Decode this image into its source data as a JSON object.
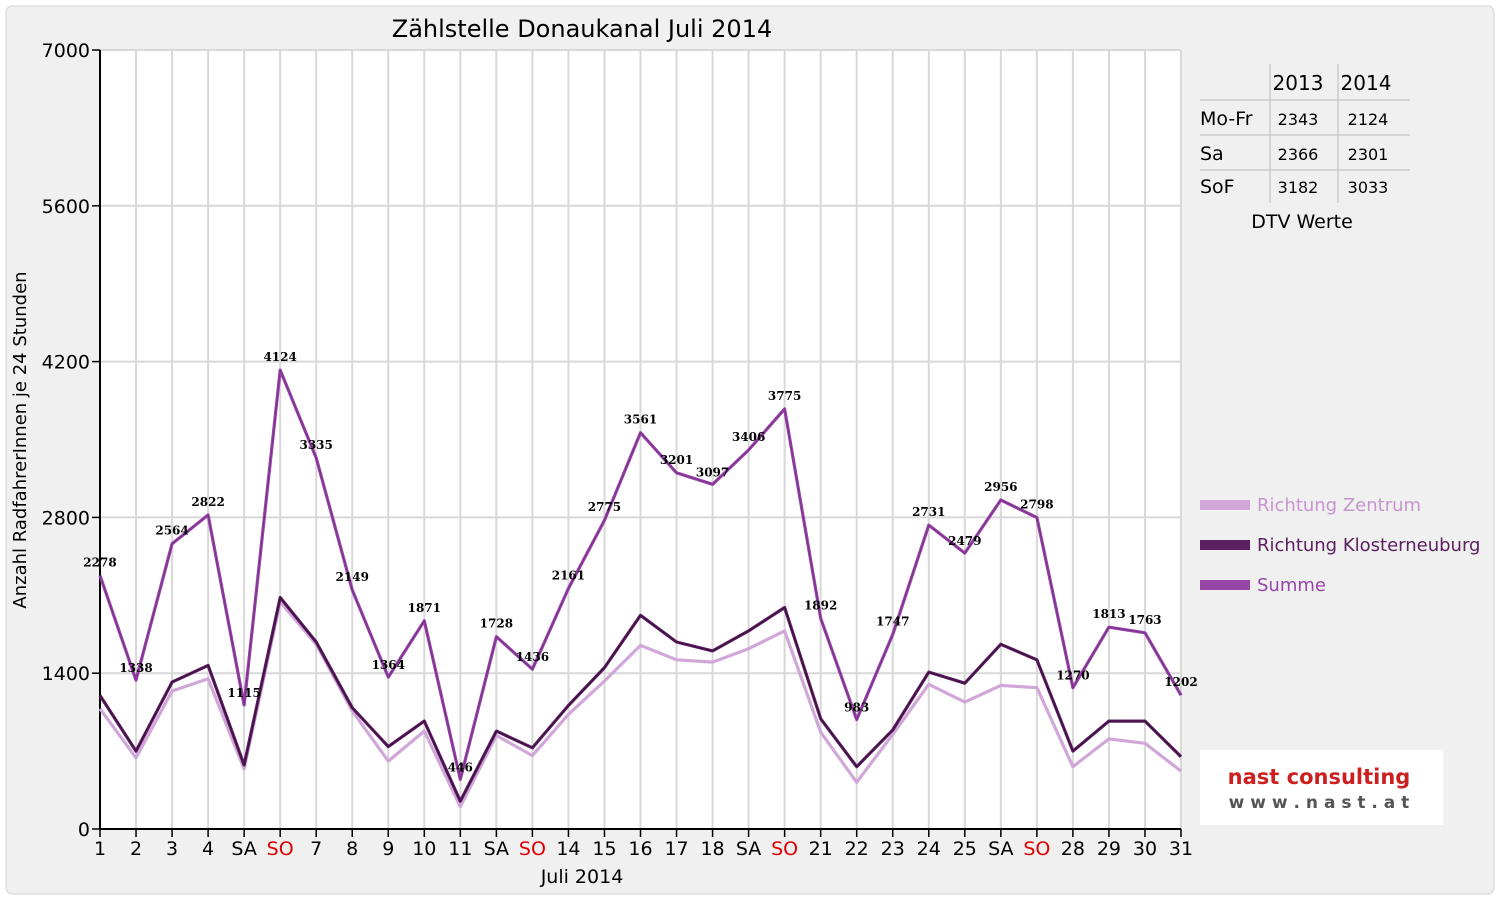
{
  "chart_data": {
    "type": "line",
    "title": "Zählstelle Donaukanal Juli 2014",
    "xlabel": "Juli 2014",
    "ylabel": "Anzahl RadfahrerInnen je 24 Stunden",
    "ylim": [
      0,
      7000
    ],
    "yticks": [
      0,
      1400,
      2800,
      4200,
      5600,
      7000
    ],
    "grid": true,
    "legend_position": "right",
    "categories": [
      "1",
      "2",
      "3",
      "4",
      "SA",
      "SO",
      "7",
      "8",
      "9",
      "10",
      "11",
      "SA",
      "SO",
      "14",
      "15",
      "16",
      "17",
      "18",
      "SA",
      "SO",
      "21",
      "22",
      "23",
      "24",
      "25",
      "SA",
      "SO",
      "28",
      "29",
      "30",
      "31"
    ],
    "weekend_colors": {
      "SA": "#000000",
      "SO": "#e00000"
    },
    "series": [
      {
        "name": "Richtung Zentrum",
        "color": "#d1a6d9",
        "values": [
          1080,
          640,
          1240,
          1350,
          540,
          2040,
          1660,
          1060,
          610,
          880,
          200,
          840,
          660,
          1030,
          1330,
          1650,
          1520,
          1500,
          1620,
          1780,
          870,
          420,
          850,
          1300,
          1140,
          1290,
          1270,
          560,
          810,
          770,
          520
        ]
      },
      {
        "name": "Richtung Klosterneuburg",
        "color": "#5c2060",
        "values": [
          1200,
          700,
          1320,
          1470,
          575,
          2080,
          1680,
          1090,
          740,
          970,
          250,
          880,
          730,
          1110,
          1450,
          1920,
          1680,
          1600,
          1780,
          1990,
          990,
          560,
          890,
          1410,
          1310,
          1660,
          1520,
          700,
          970,
          970,
          650
        ]
      },
      {
        "name": "Summe",
        "color": "#9845a8",
        "values": [
          2278,
          1338,
          2564,
          2822,
          1115,
          4124,
          3335,
          2149,
          1364,
          1871,
          446,
          1728,
          1436,
          2161,
          2775,
          3561,
          3201,
          3097,
          3406,
          3775,
          1892,
          983,
          1747,
          2731,
          2479,
          2956,
          2798,
          1270,
          1813,
          1763,
          1202
        ]
      }
    ],
    "data_labels": [
      "2278",
      "1338",
      "2564",
      "2822",
      "1115",
      "4124",
      "3335",
      "2149",
      "1364",
      "1871",
      "446",
      "1728",
      "1436",
      "2161",
      "2775",
      "3561",
      "3201",
      "3097",
      "3406",
      "3775",
      "1892",
      "983",
      "1747",
      "2731",
      "2479",
      "2956",
      "2798",
      "1270",
      "1813",
      "1763",
      "1202"
    ]
  },
  "dtv_table": {
    "headers": [
      "",
      "2013",
      "2014"
    ],
    "rows": [
      {
        "label": "Mo-Fr",
        "v2013": "2343",
        "v2014": "2124"
      },
      {
        "label": "Sa",
        "v2013": "2366",
        "v2014": "2301"
      },
      {
        "label": "SoF",
        "v2013": "3182",
        "v2014": "3033"
      }
    ],
    "caption": "DTV Werte"
  },
  "logo": {
    "company": "nast consulting",
    "url": "w w w . n a s t . a t"
  },
  "colors": {
    "frame_bg": "#f0f0f0",
    "grid": "#d8d8d8",
    "logo_red": "#cc2020",
    "logo_gray": "#555555"
  }
}
